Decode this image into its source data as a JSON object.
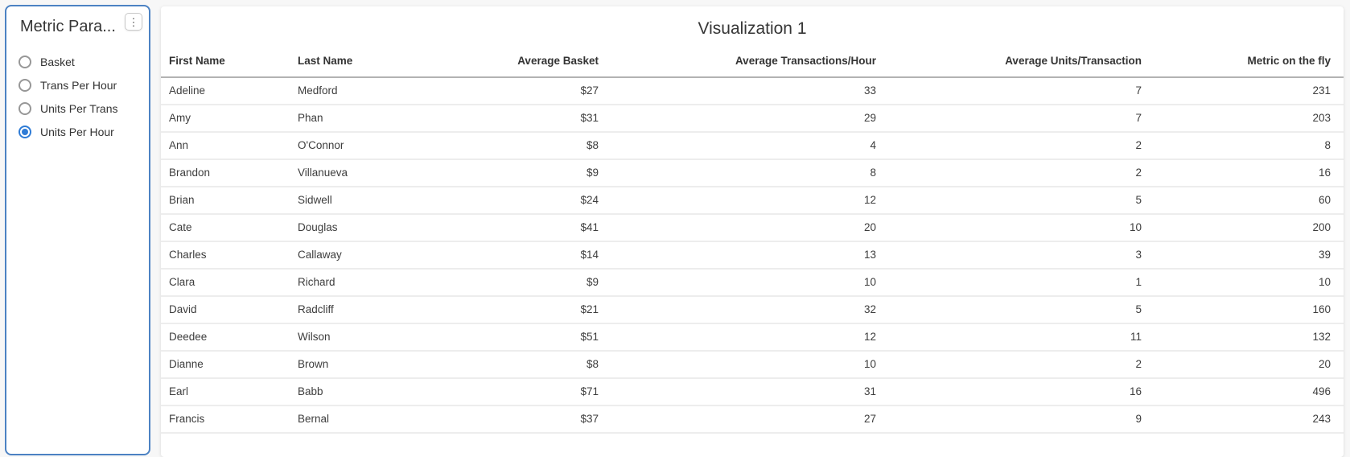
{
  "sidebar": {
    "title": "Metric Para...",
    "menu_icon": "kebab-vertical",
    "menu_glyph": "⋮",
    "options": [
      {
        "label": "Basket",
        "selected": false
      },
      {
        "label": "Trans Per Hour",
        "selected": false
      },
      {
        "label": "Units Per Trans",
        "selected": false
      },
      {
        "label": "Units Per Hour",
        "selected": true
      }
    ]
  },
  "visualization": {
    "title": "Visualization 1",
    "table": {
      "columns": [
        {
          "label": "First Name",
          "align": "left"
        },
        {
          "label": "Last Name",
          "align": "left"
        },
        {
          "label": "Average Basket",
          "align": "right"
        },
        {
          "label": "Average Transactions/Hour",
          "align": "right"
        },
        {
          "label": "Average Units/Transaction",
          "align": "right"
        },
        {
          "label": "Metric on the fly",
          "align": "right"
        }
      ],
      "rows": [
        [
          "Adeline",
          "Medford",
          "$27",
          "33",
          "7",
          "231"
        ],
        [
          "Amy",
          "Phan",
          "$31",
          "29",
          "7",
          "203"
        ],
        [
          "Ann",
          "O'Connor",
          "$8",
          "4",
          "2",
          "8"
        ],
        [
          "Brandon",
          "Villanueva",
          "$9",
          "8",
          "2",
          "16"
        ],
        [
          "Brian",
          "Sidwell",
          "$24",
          "12",
          "5",
          "60"
        ],
        [
          "Cate",
          "Douglas",
          "$41",
          "20",
          "10",
          "200"
        ],
        [
          "Charles",
          "Callaway",
          "$14",
          "13",
          "3",
          "39"
        ],
        [
          "Clara",
          "Richard",
          "$9",
          "10",
          "1",
          "10"
        ],
        [
          "David",
          "Radcliff",
          "$21",
          "32",
          "5",
          "160"
        ],
        [
          "Deedee",
          "Wilson",
          "$51",
          "12",
          "11",
          "132"
        ],
        [
          "Dianne",
          "Brown",
          "$8",
          "10",
          "2",
          "20"
        ],
        [
          "Earl",
          "Babb",
          "$71",
          "31",
          "16",
          "496"
        ],
        [
          "Francis",
          "Bernal",
          "$37",
          "27",
          "9",
          "243"
        ]
      ]
    }
  },
  "colors": {
    "panel_border": "#4c82c3",
    "radio_selected": "#2f7cd6",
    "header_rule": "#b3b3b3",
    "row_rule": "#ededed",
    "page_background": "#f7f7f7"
  }
}
